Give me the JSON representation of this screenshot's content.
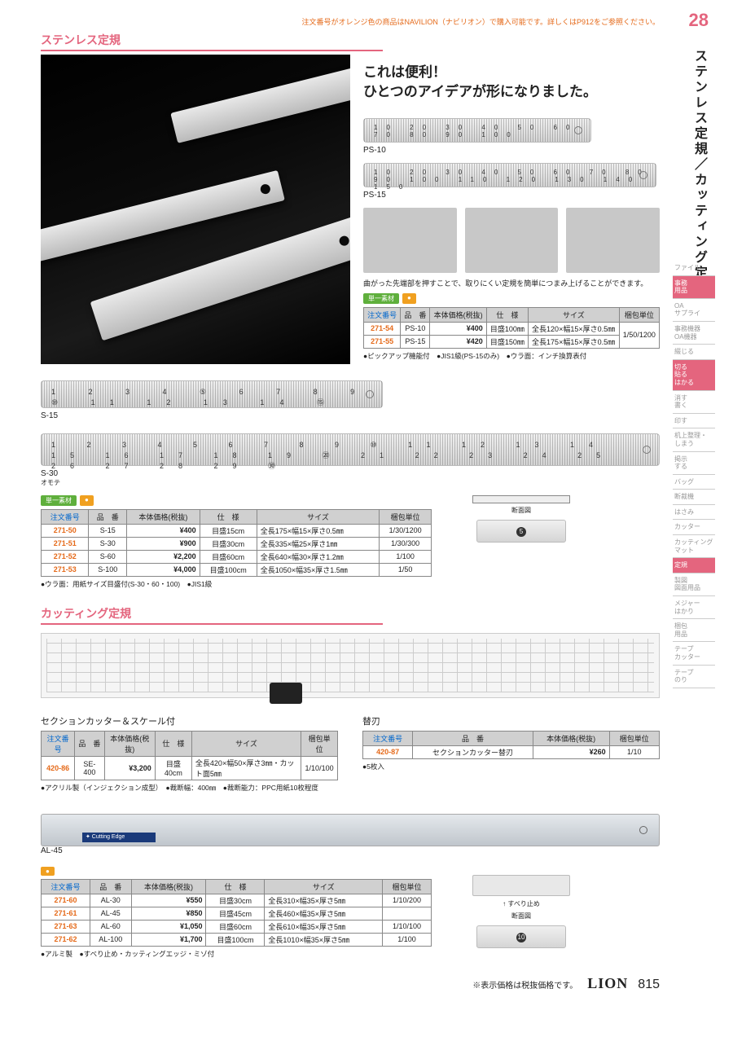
{
  "top_note": "注文番号がオレンジ色の商品はNAVILION（ナビリオン）で購入可能です。詳しくはP912をご参照ください。",
  "page_number_top": "28",
  "vertical_title": "ステンレス定規／カッティング定規",
  "side_nav": [
    {
      "label": "ファイル",
      "active": false
    },
    {
      "label": "事務\n用品",
      "active": true
    },
    {
      "label": "OA\nサプライ",
      "active": false
    },
    {
      "label": "事務機器\nOA機器",
      "active": false
    },
    {
      "label": "綴じる",
      "active": false
    },
    {
      "label": "切る\n貼る\nはかる",
      "active": true
    },
    {
      "label": "消す\n書く",
      "active": false
    },
    {
      "label": "印す",
      "active": false
    },
    {
      "label": "机上整理・\nしまう",
      "active": false
    },
    {
      "label": "掲示\nする",
      "active": false
    },
    {
      "label": "バッグ",
      "active": false
    },
    {
      "label": "断裁機",
      "active": false
    },
    {
      "label": "はさみ",
      "active": false
    },
    {
      "label": "カッター",
      "active": false
    },
    {
      "label": "カッティング\nマット",
      "active": false
    },
    {
      "label": "定規",
      "active": true
    },
    {
      "label": "製図\n図面用品",
      "active": false
    },
    {
      "label": "メジャー\nはかり",
      "active": false
    },
    {
      "label": "梱包\n用品",
      "active": false
    },
    {
      "label": "テープ\nカッター",
      "active": false
    },
    {
      "label": "テープ\nのり",
      "active": false
    }
  ],
  "section1_title": "ステンレス定規",
  "hero_line1": "これは便利！",
  "hero_line2": "ひとつのアイデアが形になりました。",
  "ps10_label": "PS-10",
  "ps15_label": "PS-15",
  "detail_caption": "曲がった先端部を押すことで、取りにくい定規を簡単につまみ上げることができます。",
  "badge_green": "単一素材",
  "badge_orange": "●",
  "table_headers": {
    "order": "注文番号",
    "model": "品　番",
    "price": "本体価格(税抜)",
    "spec": "仕　様",
    "size": "サイズ",
    "unit": "梱包単位"
  },
  "table_ps": {
    "rows": [
      {
        "order": "271-54",
        "model": "PS-10",
        "price": "¥400",
        "spec": "目盛100㎜",
        "size": "全長120×幅15×厚さ0.5㎜"
      },
      {
        "order": "271-55",
        "model": "PS-15",
        "price": "¥420",
        "spec": "目盛150㎜",
        "size": "全長175×幅15×厚さ0.5㎜"
      }
    ],
    "unit": "1/50/1200",
    "notes": "●ピックアップ機能付　●JIS1級(PS-15のみ)　●ウラ面：インチ換算表付"
  },
  "s15_label": "S-15",
  "s30_label": "S-30",
  "s30_sub": "オモテ",
  "table_s": {
    "rows": [
      {
        "order": "271-50",
        "model": "S-15",
        "price": "¥400",
        "spec": "目盛15cm",
        "size": "全長175×幅15×厚さ0.5㎜",
        "unit": "1/30/1200"
      },
      {
        "order": "271-51",
        "model": "S-30",
        "price": "¥900",
        "spec": "目盛30cm",
        "size": "全長335×幅25×厚さ1㎜",
        "unit": "1/30/300"
      },
      {
        "order": "271-52",
        "model": "S-60",
        "price": "¥2,200",
        "spec": "目盛60cm",
        "size": "全長640×幅30×厚さ1.2㎜",
        "unit": "1/100"
      },
      {
        "order": "271-53",
        "model": "S-100",
        "price": "¥4,000",
        "spec": "目盛100cm",
        "size": "全長1050×幅35×厚さ1.5㎜",
        "unit": "1/50"
      }
    ],
    "notes": "●ウラ面：用紙サイズ目盛付(S-30・60・100)　●JIS1級"
  },
  "cross_label": "断面図",
  "section2_title": "カッティング定規",
  "se_title": "セクションカッター＆スケール付",
  "table_se": {
    "rows": [
      {
        "order": "420-86",
        "model": "SE-400",
        "price": "¥3,200",
        "spec": "目盛40cm",
        "size": "全長420×幅50×厚さ3㎜・カット面5㎜",
        "unit": "1/10/100"
      }
    ],
    "notes": "●アクリル製（インジェクション成型）　●裁断幅：400㎜　●裁断能力：PPC用紙10枚程度"
  },
  "blade_title": "替刃",
  "table_blade": {
    "rows": [
      {
        "order": "420-87",
        "model": "セクションカッター替刃",
        "price": "¥260",
        "unit": "1/10"
      }
    ],
    "notes": "●5枚入"
  },
  "al45_label": "AL-45",
  "al_blue": "✦ Cutting Edge",
  "table_al": {
    "rows": [
      {
        "order": "271-60",
        "model": "AL-30",
        "price": "¥550",
        "spec": "目盛30cm",
        "size": "全長310×幅35×厚さ5㎜",
        "unit": "1/10/200"
      },
      {
        "order": "271-61",
        "model": "AL-45",
        "price": "¥850",
        "spec": "目盛45cm",
        "size": "全長460×幅35×厚さ5㎜",
        "unit": ""
      },
      {
        "order": "271-63",
        "model": "AL-60",
        "price": "¥1,050",
        "spec": "目盛60cm",
        "size": "全長610×幅35×厚さ5㎜",
        "unit": "1/10/100"
      },
      {
        "order": "271-62",
        "model": "AL-100",
        "price": "¥1,700",
        "spec": "目盛100cm",
        "size": "全長1010×幅35×厚さ5㎜",
        "unit": "1/100"
      }
    ],
    "notes": "●アルミ製　●すべり止め・カッティングエッジ・ミゾ付"
  },
  "al_profile_label": "すべり止め",
  "footer_note": "※表示価格は税抜価格です。",
  "brand": "LION",
  "page_bottom": "815"
}
